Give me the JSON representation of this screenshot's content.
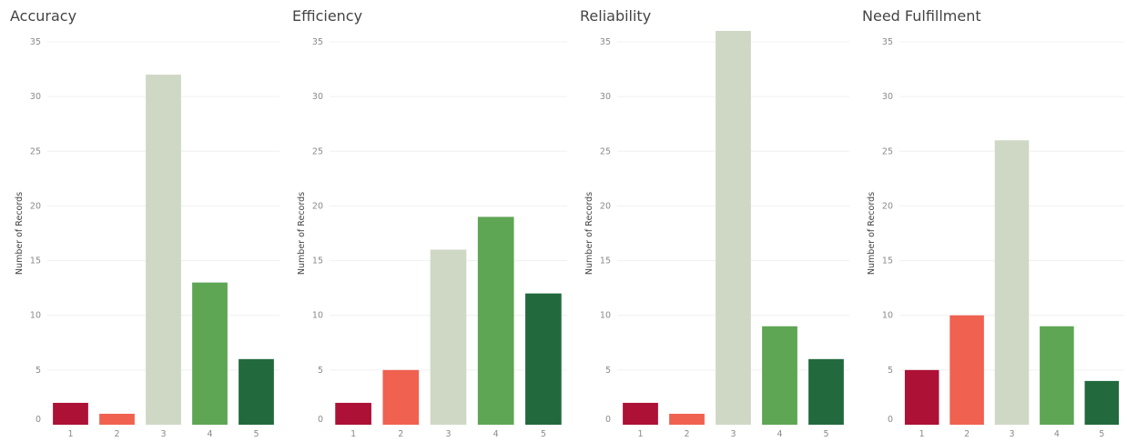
{
  "chart_data": [
    {
      "type": "bar",
      "title": "Accuracy",
      "ylabel": "Number of Records",
      "xlabel": "",
      "categories": [
        "1",
        "2",
        "3",
        "4",
        "5"
      ],
      "values": [
        2,
        1,
        32,
        13,
        6
      ],
      "ylim": [
        0,
        35
      ],
      "yticks": [
        0,
        5,
        10,
        15,
        20,
        25,
        30,
        35
      ],
      "grid": true
    },
    {
      "type": "bar",
      "title": "Efficiency",
      "ylabel": "Number of Records",
      "xlabel": "",
      "categories": [
        "1",
        "2",
        "3",
        "4",
        "5"
      ],
      "values": [
        2,
        5,
        16,
        19,
        12
      ],
      "ylim": [
        0,
        35
      ],
      "yticks": [
        0,
        5,
        10,
        15,
        20,
        25,
        30,
        35
      ],
      "grid": true
    },
    {
      "type": "bar",
      "title": "Reliability",
      "ylabel": "Number of Records",
      "xlabel": "",
      "categories": [
        "1",
        "2",
        "3",
        "4",
        "5"
      ],
      "values": [
        2,
        1,
        36,
        9,
        6
      ],
      "ylim": [
        0,
        35
      ],
      "yticks": [
        0,
        5,
        10,
        15,
        20,
        25,
        30,
        35
      ],
      "grid": true
    },
    {
      "type": "bar",
      "title": "Need Fulfillment",
      "ylabel": "Number of Records",
      "xlabel": "",
      "categories": [
        "1",
        "2",
        "3",
        "4",
        "5"
      ],
      "values": [
        5,
        10,
        26,
        9,
        4
      ],
      "ylim": [
        0,
        35
      ],
      "yticks": [
        0,
        5,
        10,
        15,
        20,
        25,
        30,
        35
      ],
      "grid": true
    }
  ],
  "colors": {
    "1": "#ad1136",
    "2": "#f06150",
    "3": "#cfd8c4",
    "4": "#5ea554",
    "5": "#226a3e"
  }
}
